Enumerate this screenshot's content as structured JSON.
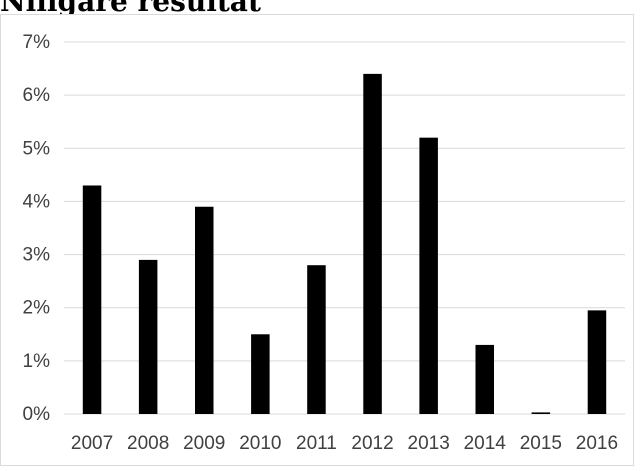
{
  "heading": "Nlligare resultat",
  "chart_data": {
    "type": "bar",
    "title": "",
    "xlabel": "",
    "ylabel": "",
    "categories": [
      "2007",
      "2008",
      "2009",
      "2010",
      "2011",
      "2012",
      "2013",
      "2014",
      "2015",
      "2016"
    ],
    "values": [
      4.3,
      2.9,
      3.9,
      1.5,
      2.8,
      6.4,
      5.2,
      1.3,
      0.03,
      1.95
    ],
    "value_unit": "%",
    "ylim": [
      0,
      7
    ],
    "yticks": [
      "0%",
      "1%",
      "2%",
      "3%",
      "4%",
      "5%",
      "6%",
      "7%"
    ],
    "grid": true,
    "legend": "none",
    "bar_color": "#000000",
    "grid_color": "#d9d9d9",
    "tick_color": "#404040"
  }
}
